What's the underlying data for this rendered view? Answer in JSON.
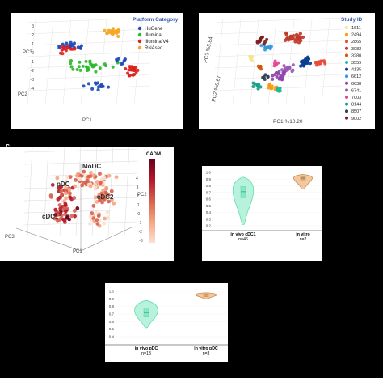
{
  "panel_labels": {
    "c": "c"
  },
  "chart_data": [
    {
      "id": "platform",
      "type": "scatter",
      "title": "",
      "legend_title": "Platform Category",
      "legend_position": "top-right",
      "axis_labels": {
        "x": "PC1",
        "y": "PC2",
        "z": "PC3"
      },
      "ticks_z": [
        "3",
        "2",
        "1",
        "0",
        "-1",
        "-2",
        "-3",
        "-4"
      ],
      "series": [
        {
          "name": "HuGene",
          "color": "#1d4bb8"
        },
        {
          "name": "Illumina",
          "color": "#2db82d"
        },
        {
          "name": "Illumina V4",
          "color": "#e02020"
        },
        {
          "name": "RNAseq",
          "color": "#f5a623"
        }
      ]
    },
    {
      "id": "study",
      "type": "scatter",
      "legend_title": "Study ID",
      "legend_position": "right",
      "axis_labels": {
        "x": "PC1 %10.20",
        "y": "PC2 %6.67",
        "z": "PC3 %5.84"
      },
      "series": [
        {
          "name": "1611",
          "color": "#f6e58d"
        },
        {
          "name": "2494",
          "color": "#f39c12"
        },
        {
          "name": "2865",
          "color": "#e74c3c"
        },
        {
          "name": "3082",
          "color": "#c0392b"
        },
        {
          "name": "3280",
          "color": "#d35400"
        },
        {
          "name": "3559",
          "color": "#1abc9c"
        },
        {
          "name": "4135",
          "color": "#0b3d91"
        },
        {
          "name": "6612",
          "color": "#3498db"
        },
        {
          "name": "6638",
          "color": "#8e44ad"
        },
        {
          "name": "6741",
          "color": "#9b59b6"
        },
        {
          "name": "7003",
          "color": "#e84393"
        },
        {
          "name": "8144",
          "color": "#16a085"
        },
        {
          "name": "8507",
          "color": "#2c3e50"
        },
        {
          "name": "9002",
          "color": "#7f1d1d"
        }
      ]
    },
    {
      "id": "cadm1",
      "type": "scatter",
      "colorbar_title": "CADM",
      "axis_labels": {
        "x": "PC1",
        "y": "PC2",
        "z": "PC3"
      },
      "cluster_labels": [
        "MoDC",
        "pDC",
        "cDC2",
        "cDC1"
      ],
      "ticks_z": [
        "4",
        "3",
        "2",
        "1",
        "0",
        "-1",
        "-2",
        "-3"
      ],
      "colorscale": [
        "#fde0d2",
        "#f4a582",
        "#d6604d",
        "#b2182b",
        "#67001f"
      ]
    },
    {
      "id": "violin_cdc1",
      "type": "violin",
      "y_ticks": [
        "1.0",
        "0.9",
        "0.8",
        "0.7",
        "0.6",
        "0.5",
        "0.4",
        "0.3",
        "0.2"
      ],
      "ylim": [
        0.2,
        1.0
      ],
      "groups": [
        {
          "label": "in vivo cDC1",
          "n": "n=46",
          "color": "#5ee0b0",
          "fill": "#b8f2dc",
          "min": 0.22,
          "q1": 0.62,
          "median": 0.71,
          "q3": 0.79,
          "max": 0.93
        },
        {
          "label": "in vitro",
          "n": "n=2",
          "color": "#c98b50",
          "fill": "#f3c89e",
          "min": 0.75,
          "q1": 0.89,
          "median": 0.915,
          "q3": 0.94,
          "max": 0.97
        }
      ]
    },
    {
      "id": "violin_pdc",
      "type": "violin",
      "y_ticks": [
        "1.0",
        "0.9",
        "0.8",
        "0.7",
        "0.6",
        "0.5",
        "0.4"
      ],
      "ylim": [
        0.4,
        1.0
      ],
      "groups": [
        {
          "label": "in vivo pDC",
          "n": "n=13",
          "color": "#5ee0b0",
          "fill": "#b8f2dc",
          "min": 0.52,
          "q1": 0.66,
          "median": 0.72,
          "q3": 0.78,
          "max": 0.88
        },
        {
          "label": "in vitro pDC",
          "n": "n=3",
          "color": "#c98b50",
          "fill": "#f3c89e",
          "min": 0.9,
          "q1": 0.93,
          "median": 0.95,
          "q3": 0.965,
          "max": 0.98
        }
      ]
    }
  ]
}
